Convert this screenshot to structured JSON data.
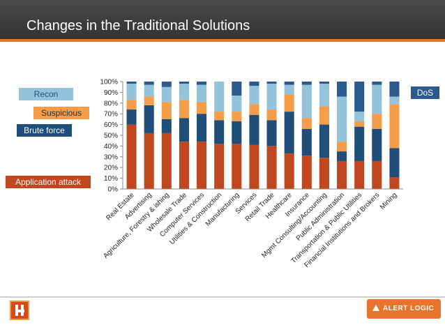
{
  "slide": {
    "title": "Changes in the Traditional Solutions",
    "logo_text": "ALERT LOGIC"
  },
  "colors": {
    "header_bg": "#3c3c3c",
    "accent": "#e8732a",
    "application_attack": "#c0471f",
    "brute_force": "#1f4e79",
    "suspicious": "#f59d4a",
    "recon": "#93c4dc",
    "dos": "#2c5a8f"
  },
  "legend": {
    "recon": "Recon",
    "suspicious": "Suspicious",
    "brute_force": "Brute force",
    "application_attack": "Application attack",
    "dos": "DoS"
  },
  "chart_data": {
    "type": "bar",
    "stacked": true,
    "percent": true,
    "title": "",
    "xlabel": "",
    "ylabel": "",
    "ylim": [
      0,
      100
    ],
    "yticks": [
      "0%",
      "10%",
      "20%",
      "30%",
      "40%",
      "50%",
      "60%",
      "70%",
      "80%",
      "90%",
      "100%"
    ],
    "categories": [
      "Real Estate",
      "Advertising",
      "Agriculture, Forestry & ishing",
      "Wholesale Trade",
      "Computer Services",
      "Utilities & Construction",
      "Manufacturing",
      "Services",
      "Retail Trade",
      "Healthcare",
      "Insurance",
      "Mgmt Consulting/Accounting",
      "Public Administration",
      "Transportation & Public Utilities",
      "Financial Institutions and Brokers",
      "Mining"
    ],
    "series": [
      {
        "name": "Application attack",
        "key": "application_attack",
        "values": [
          60,
          52,
          52,
          44,
          44,
          42,
          42,
          41,
          40,
          33,
          31,
          29,
          26,
          26,
          26,
          11
        ]
      },
      {
        "name": "Brute force",
        "key": "brute_force",
        "values": [
          14,
          26,
          13,
          22,
          26,
          22,
          21,
          28,
          24,
          39,
          25,
          31,
          9,
          32,
          30,
          27
        ]
      },
      {
        "name": "Suspicious",
        "key": "suspicious",
        "values": [
          9,
          8,
          16,
          17,
          11,
          8,
          9,
          10,
          10,
          16,
          10,
          17,
          9,
          5,
          14,
          41
        ]
      },
      {
        "name": "Recon",
        "key": "recon",
        "values": [
          15,
          11,
          14,
          15,
          16,
          28,
          15,
          17,
          24,
          9,
          31,
          21,
          42,
          9,
          27,
          7
        ]
      },
      {
        "name": "DoS",
        "key": "dos",
        "values": [
          2,
          3,
          5,
          2,
          3,
          0,
          13,
          4,
          2,
          3,
          3,
          2,
          14,
          28,
          3,
          14
        ]
      }
    ]
  }
}
